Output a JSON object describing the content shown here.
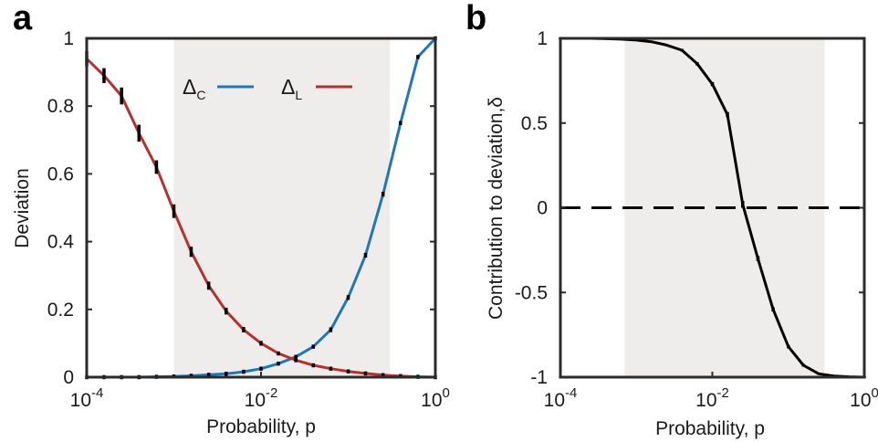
{
  "chart_data": [
    {
      "panel": "a",
      "type": "line",
      "xscale": "log",
      "xlim": [
        0.0001,
        1
      ],
      "ylim": [
        0,
        1
      ],
      "xlabel": "Probability, p",
      "ylabel": "Deviation",
      "xticks": [
        {
          "value": 0.0001,
          "base": "10",
          "exp": "-4"
        },
        {
          "value": 0.01,
          "base": "10",
          "exp": "-2"
        },
        {
          "value": 1,
          "base": "10",
          "exp": "0"
        }
      ],
      "yticks": [
        {
          "value": 0,
          "label": "0"
        },
        {
          "value": 0.2,
          "label": "0.2"
        },
        {
          "value": 0.4,
          "label": "0.4"
        },
        {
          "value": 0.6,
          "label": "0.6"
        },
        {
          "value": 0.8,
          "label": "0.8"
        },
        {
          "value": 1,
          "label": "1"
        }
      ],
      "shaded_region": [
        0.001,
        0.3
      ],
      "shade_color": "#efedec",
      "legend_position": "top-right",
      "series": [
        {
          "name_symbol": "Δ",
          "name_sub": "C",
          "color": "#1f77b4",
          "x": [
            0.0001,
            0.000158,
            0.000251,
            0.000398,
            0.000631,
            0.001,
            0.00158,
            0.00251,
            0.00398,
            0.00631,
            0.01,
            0.0158,
            0.0251,
            0.0398,
            0.0631,
            0.1,
            0.158,
            0.251,
            0.398,
            0.631,
            1
          ],
          "y": [
            0.0,
            0.0,
            0.0,
            0.0,
            0.001,
            0.002,
            0.004,
            0.007,
            0.01,
            0.016,
            0.025,
            0.04,
            0.06,
            0.09,
            0.14,
            0.235,
            0.36,
            0.54,
            0.75,
            0.945,
            1.0
          ],
          "errors": [
            0.002,
            0.002,
            0.002,
            0.002,
            0.002,
            0.002,
            0.002,
            0.002,
            0.002,
            0.003,
            0.004,
            0.005,
            0.006,
            0.006,
            0.007,
            0.007,
            0.007,
            0.007,
            0.006,
            0.005,
            0.002
          ]
        },
        {
          "name_symbol": "Δ",
          "name_sub": "L",
          "color": "#b5302e",
          "x": [
            0.0001,
            0.000158,
            0.000251,
            0.000398,
            0.000631,
            0.001,
            0.00158,
            0.00251,
            0.00398,
            0.00631,
            0.01,
            0.0158,
            0.0251,
            0.0398,
            0.0631,
            0.1,
            0.158,
            0.251,
            0.398,
            0.631,
            1
          ],
          "y": [
            0.94,
            0.89,
            0.83,
            0.72,
            0.62,
            0.49,
            0.37,
            0.27,
            0.195,
            0.14,
            0.1,
            0.07,
            0.05,
            0.035,
            0.025,
            0.017,
            0.011,
            0.006,
            0.003,
            0.001,
            0.0
          ],
          "errors": [
            0.022,
            0.022,
            0.025,
            0.025,
            0.02,
            0.02,
            0.015,
            0.012,
            0.01,
            0.008,
            0.007,
            0.006,
            0.005,
            0.004,
            0.004,
            0.003,
            0.003,
            0.002,
            0.002,
            0.002,
            0.002
          ]
        }
      ]
    },
    {
      "panel": "b",
      "type": "line",
      "xscale": "log",
      "xlim": [
        0.0001,
        1
      ],
      "ylim": [
        -1,
        1
      ],
      "xlabel": "Probability, p",
      "ylabel": "Contribution to deviation,δ",
      "xticks": [
        {
          "value": 0.0001,
          "base": "10",
          "exp": "-4"
        },
        {
          "value": 0.01,
          "base": "10",
          "exp": "-2"
        },
        {
          "value": 1,
          "base": "10",
          "exp": "0"
        }
      ],
      "yticks": [
        {
          "value": -1,
          "label": "-1"
        },
        {
          "value": -0.5,
          "label": "-0.5"
        },
        {
          "value": 0,
          "label": "0"
        },
        {
          "value": 0.5,
          "label": "0.5"
        },
        {
          "value": 1,
          "label": "1"
        }
      ],
      "shaded_region": [
        0.0007,
        0.3
      ],
      "shade_color": "#efedec",
      "reference_line": {
        "y": 0,
        "style": "dashed"
      },
      "series": [
        {
          "color": "#000000",
          "x": [
            0.0001,
            0.000158,
            0.000251,
            0.000398,
            0.000631,
            0.001,
            0.00158,
            0.00251,
            0.00398,
            0.00631,
            0.01,
            0.0158,
            0.0251,
            0.0398,
            0.0631,
            0.1,
            0.158,
            0.251,
            0.398,
            0.631,
            1
          ],
          "y": [
            1.0,
            1.0,
            1.0,
            0.998,
            0.995,
            0.99,
            0.98,
            0.96,
            0.93,
            0.85,
            0.73,
            0.55,
            0.02,
            -0.3,
            -0.6,
            -0.82,
            -0.93,
            -0.98,
            -0.993,
            -0.998,
            -1.0
          ],
          "errors": [
            0.002,
            0.002,
            0.002,
            0.003,
            0.003,
            0.004,
            0.005,
            0.006,
            0.008,
            0.01,
            0.012,
            0.015,
            0.02,
            0.015,
            0.012,
            0.01,
            0.008,
            0.005,
            0.004,
            0.003,
            0.002
          ]
        }
      ]
    }
  ]
}
